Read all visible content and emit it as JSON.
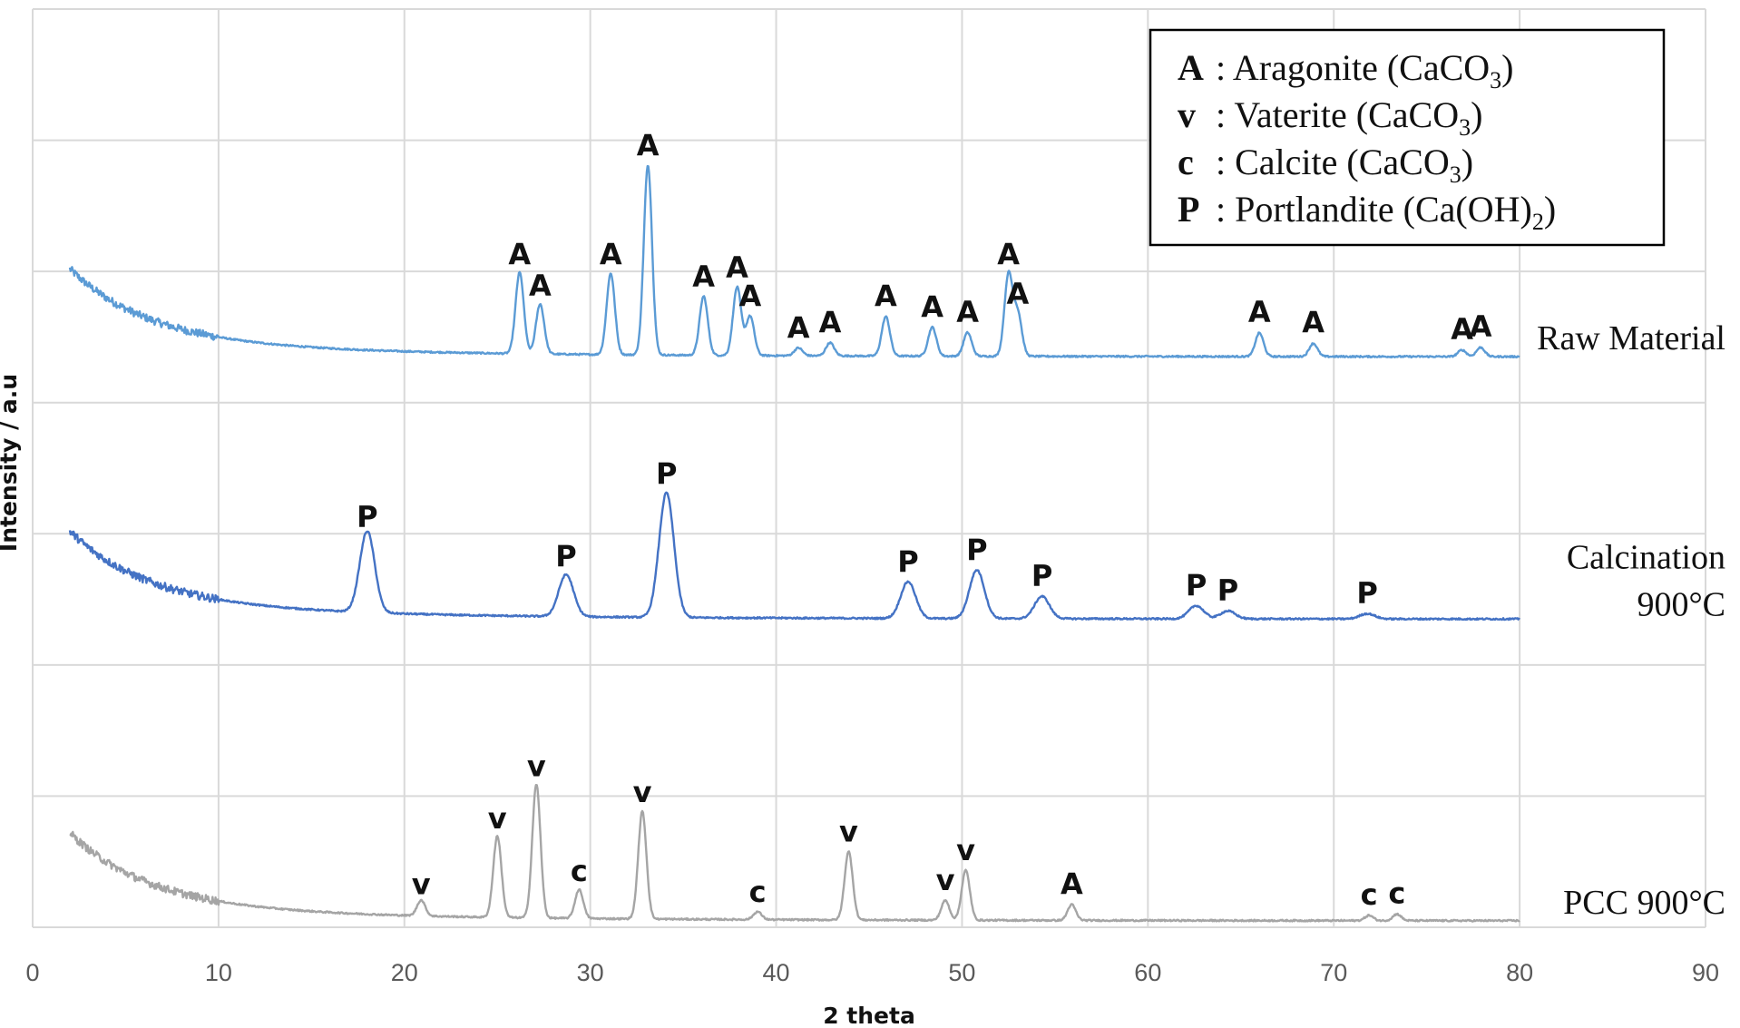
{
  "chart_data": {
    "type": "line",
    "xlabel": "2 theta",
    "ylabel": "Intensity / a.u",
    "xlim": [
      0,
      90
    ],
    "xticks": [
      0,
      10,
      20,
      30,
      40,
      50,
      60,
      70,
      80,
      90
    ],
    "ylim": [
      0,
      7
    ],
    "grid": true,
    "legend_position": "top-right",
    "legend": [
      {
        "symbol": "A",
        "text": "Aragonite (CaCO",
        "sub": "3",
        "tail": ")"
      },
      {
        "symbol": "v",
        "text": "Vaterite (CaCO",
        "sub": "3",
        "tail": ")"
      },
      {
        "symbol": "c",
        "text": "Calcite (CaCO",
        "sub": "3",
        "tail": ")"
      },
      {
        "symbol": "P",
        "text": "Portlandite (Ca(OH)",
        "sub": "2",
        "tail": ")"
      }
    ],
    "series": [
      {
        "name": "Raw Material",
        "label_lines": [
          "Raw Material"
        ],
        "color": "#5b9bd5",
        "baseline": 4.35,
        "x_range": [
          2,
          80
        ],
        "peaks": [
          {
            "x": 26.2,
            "h": 0.62,
            "label": "A"
          },
          {
            "x": 27.3,
            "h": 0.38,
            "label": "A"
          },
          {
            "x": 31.1,
            "h": 0.62,
            "label": "A"
          },
          {
            "x": 33.1,
            "h": 1.45,
            "label": "A"
          },
          {
            "x": 36.1,
            "h": 0.45,
            "label": "A"
          },
          {
            "x": 37.9,
            "h": 0.52,
            "label": "A"
          },
          {
            "x": 38.6,
            "h": 0.3,
            "label": "A"
          },
          {
            "x": 41.2,
            "h": 0.06,
            "label": "A"
          },
          {
            "x": 42.9,
            "h": 0.1,
            "label": "A"
          },
          {
            "x": 45.9,
            "h": 0.3,
            "label": "A"
          },
          {
            "x": 48.4,
            "h": 0.22,
            "label": "A"
          },
          {
            "x": 50.3,
            "h": 0.18,
            "label": "A"
          },
          {
            "x": 52.5,
            "h": 0.62,
            "label": "A"
          },
          {
            "x": 53.0,
            "h": 0.32,
            "label": "A"
          },
          {
            "x": 66.0,
            "h": 0.18,
            "label": "A"
          },
          {
            "x": 68.9,
            "h": 0.1,
            "label": "A"
          },
          {
            "x": 76.9,
            "h": 0.05,
            "label": "A"
          },
          {
            "x": 77.9,
            "h": 0.07,
            "label": "A"
          }
        ]
      },
      {
        "name": "Calcination 900°C",
        "label_lines": [
          "Calcination",
          "900°C"
        ],
        "color": "#4472c4",
        "baseline": 2.35,
        "x_range": [
          2,
          80
        ],
        "peaks": [
          {
            "x": 18.0,
            "h": 0.62,
            "label": "P"
          },
          {
            "x": 28.7,
            "h": 0.32,
            "label": "P"
          },
          {
            "x": 34.1,
            "h": 0.95,
            "label": "P"
          },
          {
            "x": 47.1,
            "h": 0.28,
            "label": "P"
          },
          {
            "x": 50.8,
            "h": 0.37,
            "label": "P"
          },
          {
            "x": 54.3,
            "h": 0.17,
            "label": "P"
          },
          {
            "x": 62.6,
            "h": 0.1,
            "label": "P"
          },
          {
            "x": 64.3,
            "h": 0.06,
            "label": "P"
          },
          {
            "x": 71.8,
            "h": 0.04,
            "label": "P"
          }
        ]
      },
      {
        "name": "PCC 900°C",
        "label_lines": [
          "PCC 900°C"
        ],
        "color": "#a5a5a5",
        "baseline": 0.05,
        "x_range": [
          2,
          80
        ],
        "peaks": [
          {
            "x": 20.9,
            "h": 0.12,
            "label": "v"
          },
          {
            "x": 25.0,
            "h": 0.62,
            "label": "v"
          },
          {
            "x": 27.1,
            "h": 1.02,
            "label": "v"
          },
          {
            "x": 29.4,
            "h": 0.22,
            "label": "c"
          },
          {
            "x": 32.8,
            "h": 0.82,
            "label": "v"
          },
          {
            "x": 39.0,
            "h": 0.06,
            "label": "c"
          },
          {
            "x": 43.9,
            "h": 0.52,
            "label": "v"
          },
          {
            "x": 49.1,
            "h": 0.15,
            "label": "v"
          },
          {
            "x": 50.2,
            "h": 0.38,
            "label": "v"
          },
          {
            "x": 55.9,
            "h": 0.12,
            "label": "A"
          },
          {
            "x": 71.9,
            "h": 0.04,
            "label": "c"
          },
          {
            "x": 73.4,
            "h": 0.05,
            "label": "c"
          }
        ]
      }
    ]
  }
}
